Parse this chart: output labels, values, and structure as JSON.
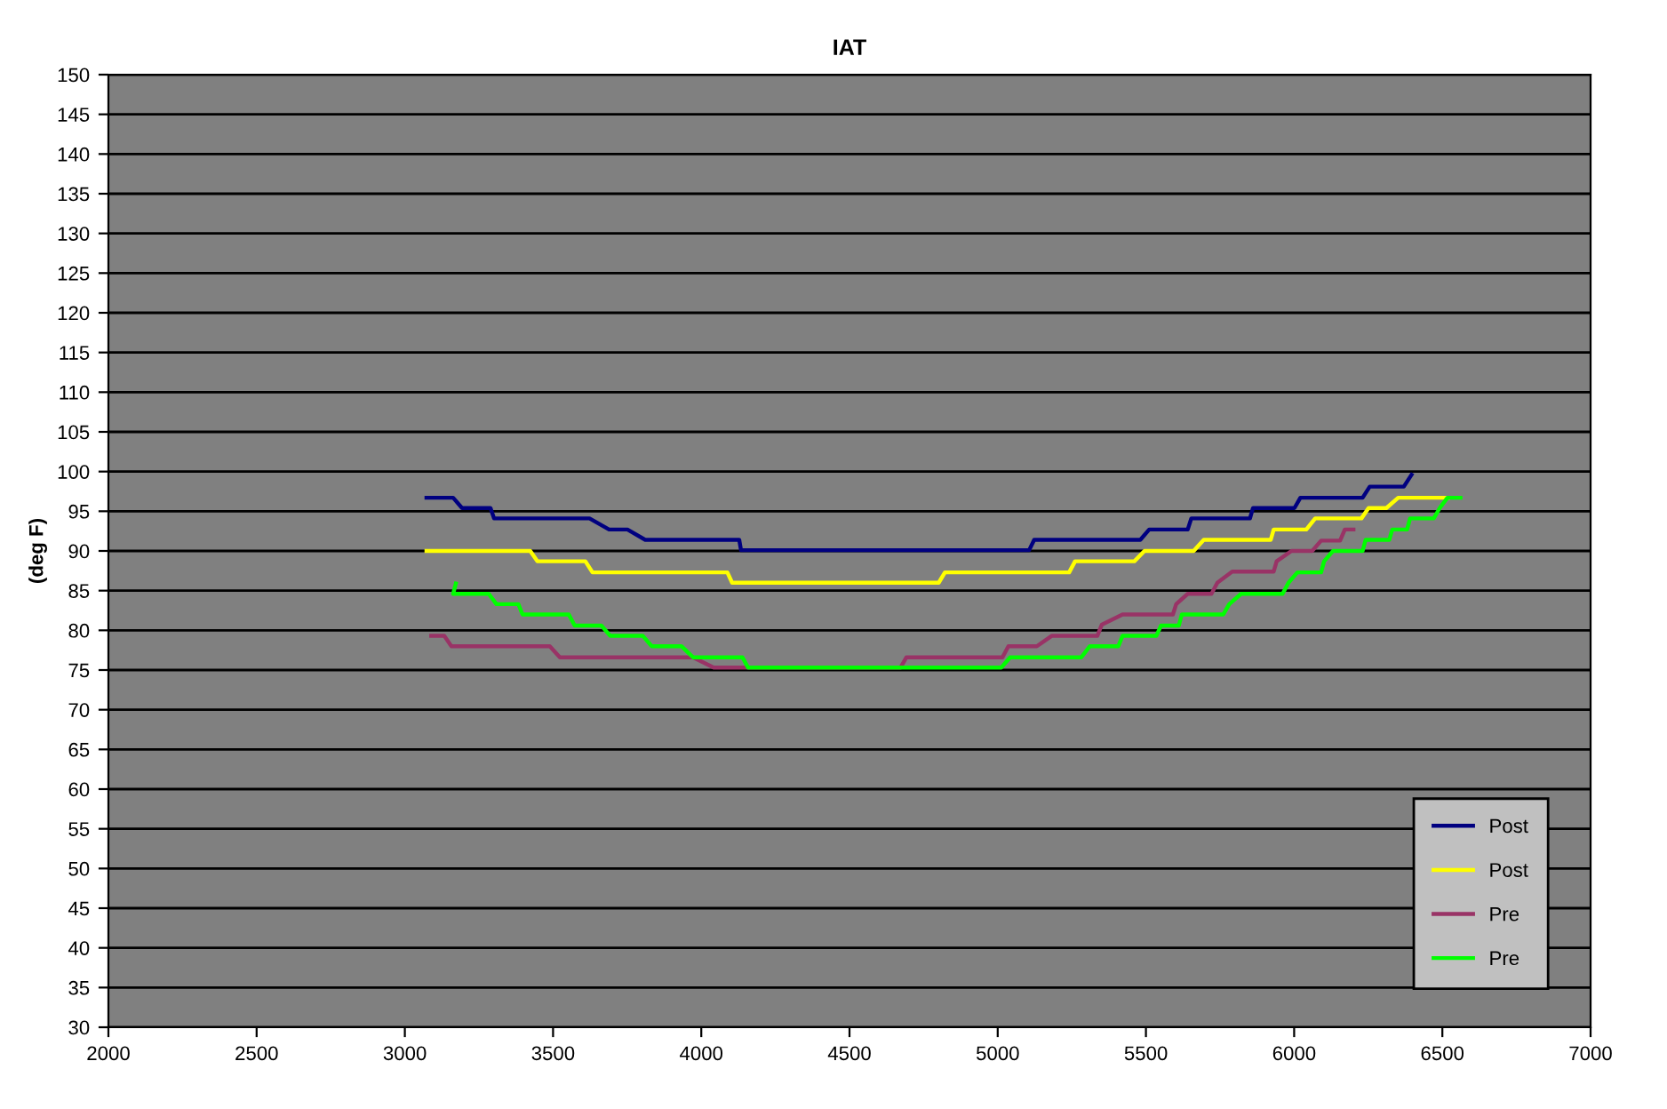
{
  "chart_data": {
    "type": "line",
    "title": "IAT",
    "ylabel": "(deg F)",
    "xlim": [
      2000,
      7000
    ],
    "xticks": [
      2000,
      2500,
      3000,
      3500,
      4000,
      4500,
      5000,
      5500,
      6000,
      6500,
      7000
    ],
    "ylim": [
      30,
      150
    ],
    "yticks": [
      30,
      35,
      40,
      45,
      50,
      55,
      60,
      65,
      70,
      75,
      80,
      85,
      90,
      95,
      100,
      105,
      110,
      115,
      120,
      125,
      130,
      135,
      140,
      145,
      150
    ],
    "grid": "y",
    "legend": "bottom right",
    "marker": "none",
    "line_style": "solid",
    "series": [
      {
        "name": "Post",
        "color": "#000080",
        "x": [
          3073,
          3163,
          3193,
          3289,
          3301,
          3623,
          3689,
          3751,
          3811,
          4128,
          4134,
          5106,
          5123,
          5481,
          5511,
          5641,
          5653,
          5851,
          5861,
          6001,
          6021,
          6231,
          6255,
          6370,
          6396
        ],
        "values": [
          96.7,
          96.7,
          95.4,
          95.4,
          94.1,
          94.1,
          92.7,
          92.7,
          91.4,
          91.4,
          90.1,
          90.1,
          91.4,
          91.4,
          92.7,
          92.7,
          94.1,
          94.1,
          95.4,
          95.4,
          96.7,
          96.7,
          98.1,
          98.1,
          99.6
        ]
      },
      {
        "name": "Post",
        "color": "#ffff00",
        "x": [
          3073,
          3423,
          3447,
          3609,
          3633,
          4088,
          4104,
          4801,
          4822,
          5241,
          5261,
          5461,
          5495,
          5661,
          5695,
          5921,
          5931,
          6041,
          6071,
          6227,
          6251,
          6311,
          6351,
          6520
        ],
        "values": [
          90.0,
          90.0,
          88.7,
          88.7,
          87.3,
          87.3,
          86.0,
          86.0,
          87.3,
          87.3,
          88.7,
          88.7,
          90.0,
          90.0,
          91.4,
          91.4,
          92.7,
          92.7,
          94.1,
          94.1,
          95.4,
          95.4,
          96.7,
          96.7
        ]
      },
      {
        "name": "Pre",
        "color": "#993366",
        "x": [
          3089,
          3133,
          3157,
          3489,
          3523,
          3972,
          4042,
          4672,
          4692,
          5016,
          5036,
          5132,
          5182,
          5336,
          5351,
          5421,
          5591,
          5602,
          5641,
          5721,
          5741,
          5791,
          5931,
          5941,
          5991,
          6061,
          6091,
          6155,
          6171,
          6200
        ],
        "values": [
          79.3,
          79.3,
          78.0,
          78.0,
          76.6,
          76.6,
          75.3,
          75.3,
          76.6,
          76.6,
          78.0,
          78.0,
          79.3,
          79.3,
          80.7,
          82.0,
          82.0,
          83.3,
          84.6,
          84.6,
          86.0,
          87.4,
          87.4,
          88.7,
          90.0,
          90.0,
          91.3,
          91.3,
          92.7,
          92.7
        ]
      },
      {
        "name": "Pre",
        "color": "#00ff00",
        "x": [
          3172,
          3163,
          3283,
          3309,
          3383,
          3397,
          3553,
          3573,
          3663,
          3693,
          3803,
          3833,
          3933,
          3972,
          4139,
          4158,
          5012,
          5042,
          5282,
          5311,
          5407,
          5421,
          5535,
          5551,
          5611,
          5621,
          5761,
          5781,
          5821,
          5961,
          5981,
          6011,
          6091,
          6101,
          6131,
          6231,
          6241,
          6321,
          6331,
          6381,
          6391,
          6471,
          6491,
          6517,
          6561
        ],
        "values": [
          85.9,
          84.6,
          84.6,
          83.3,
          83.3,
          82.0,
          82.0,
          80.6,
          80.6,
          79.3,
          79.3,
          78.0,
          78.0,
          76.6,
          76.6,
          75.3,
          75.3,
          76.6,
          76.6,
          78.0,
          78.0,
          79.3,
          79.3,
          80.6,
          80.6,
          82.0,
          82.0,
          83.3,
          84.6,
          84.6,
          86.0,
          87.3,
          87.3,
          88.7,
          90.0,
          90.0,
          91.4,
          91.4,
          92.7,
          92.7,
          94.1,
          94.1,
          95.4,
          96.7,
          96.7
        ]
      }
    ]
  }
}
